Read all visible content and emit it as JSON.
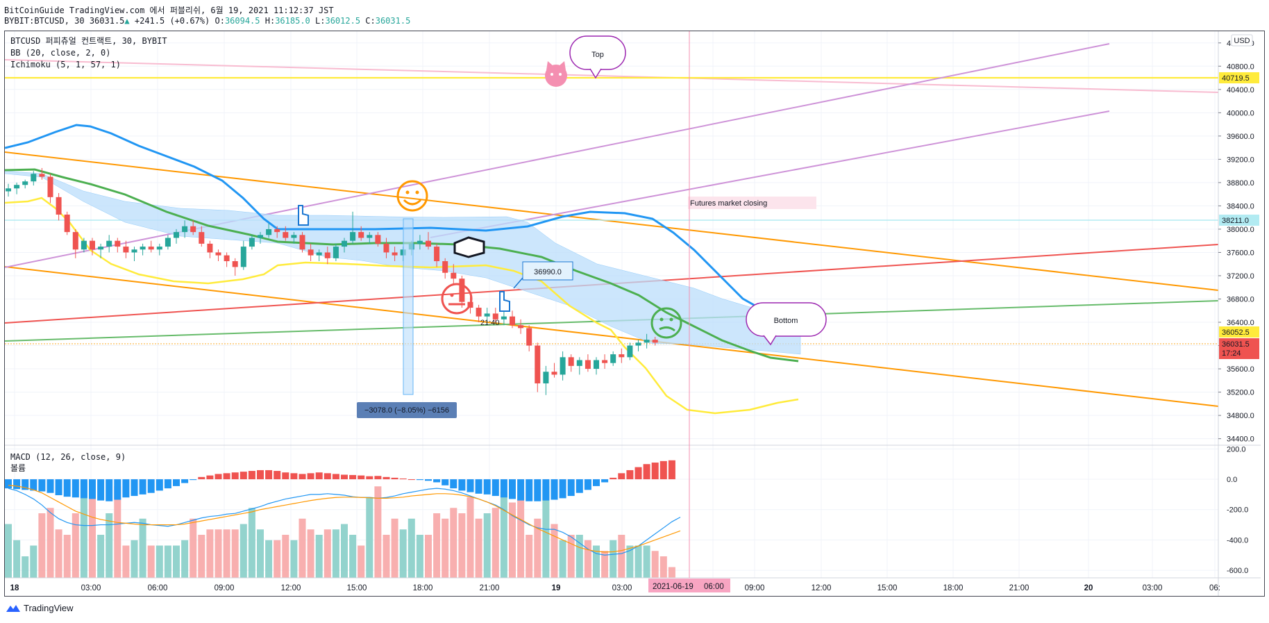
{
  "header": {
    "line1": "BitCoinGuide TradingView.com 에서 퍼블리쉬, 6월 19, 2021 11:12:37 JST",
    "symbol": "BYBIT:BTCUSD, 30",
    "last": "36031.5",
    "change": "+241.5 (+0.67%)",
    "o_label": "O:",
    "o": "36094.5",
    "h_label": "H:",
    "h": "36185.0",
    "l_label": "L:",
    "l": "36012.5",
    "c_label": "C:",
    "c": "36031.5"
  },
  "legend": {
    "title": "BTCUSD 퍼피츄얼 컨트랙트, 30, BYBIT",
    "bb": "BB (20, close, 2, 0)",
    "ichimoku": "Ichimoku (5, 1, 57, 1)",
    "macd": "MACD (12, 26, close, 9)",
    "volume": "볼륨"
  },
  "currency": "USD",
  "footer": {
    "brand": "TradingView"
  },
  "annotations": {
    "top": "Top",
    "bottom": "Bottom",
    "futures": "Futures market closing",
    "price_note": "36990.0",
    "time_note": "21:40",
    "measure": "−3078.0 (−8.05%) −6156"
  },
  "price_labels": {
    "p1": "40719.5",
    "p2": "38211.0",
    "p3": "36052.5",
    "p4": "36031.5",
    "countdown": "17:24"
  },
  "colors": {
    "up": "#26a69a",
    "down": "#ef5350",
    "bb_basis": "#2196f3",
    "cloud": "#bbdefb",
    "ichimoku_green": "#4caf50",
    "ichimoku_yellow": "#ffeb3b",
    "orange": "#ff9800",
    "violet": "#ce93d8",
    "pink": "#f8bbd0",
    "red_trend": "#ef5350",
    "green_trend": "#66bb6a"
  },
  "chart_data": [
    {
      "type": "candlestick",
      "price_axis_ticks": [
        "41200.0",
        "40800.0",
        "40400.0",
        "40000.0",
        "39600.0",
        "39200.0",
        "38800.0",
        "38400.0",
        "38000.0",
        "37600.0",
        "37200.0",
        "36800.0",
        "36400.0",
        "36000.0",
        "35600.0",
        "35200.0",
        "34800.0",
        "34400.0"
      ],
      "ylim": [
        34300,
        41400
      ],
      "time_axis_ticks": [
        "18",
        "03:00",
        "06:00",
        "09:00",
        "12:00",
        "15:00",
        "18:00",
        "21:00",
        "19",
        "03:00",
        "06:00",
        "09:00",
        "12:00",
        "15:00",
        "18:00",
        "21:00",
        "20",
        "03:00",
        "06:"
      ],
      "crosshair_time": "2021-06-19",
      "crosshair_time2": "06:00",
      "candles": [
        [
          38650,
          38780,
          38560,
          38700
        ],
        [
          38700,
          38800,
          38600,
          38760
        ],
        [
          38760,
          38850,
          38700,
          38820
        ],
        [
          38820,
          39000,
          38750,
          38950
        ],
        [
          38950,
          39050,
          38850,
          38900
        ],
        [
          38900,
          38950,
          38450,
          38550
        ],
        [
          38550,
          38620,
          38150,
          38250
        ],
        [
          38250,
          38300,
          37900,
          37950
        ],
        [
          37950,
          38000,
          37500,
          37650
        ],
        [
          37650,
          37850,
          37600,
          37800
        ],
        [
          37800,
          37850,
          37550,
          37650
        ],
        [
          37650,
          37750,
          37500,
          37700
        ],
        [
          37700,
          37900,
          37600,
          37800
        ],
        [
          37800,
          37850,
          37600,
          37700
        ],
        [
          37700,
          37800,
          37500,
          37600
        ],
        [
          37600,
          37700,
          37450,
          37650
        ],
        [
          37650,
          37750,
          37550,
          37700
        ],
        [
          37700,
          37800,
          37600,
          37650
        ],
        [
          37650,
          37750,
          37550,
          37700
        ],
        [
          37700,
          37900,
          37650,
          37850
        ],
        [
          37850,
          38000,
          37750,
          37950
        ],
        [
          37950,
          38150,
          37850,
          38050
        ],
        [
          38050,
          38150,
          37900,
          37950
        ],
        [
          37950,
          38050,
          37700,
          37750
        ],
        [
          37750,
          37800,
          37500,
          37600
        ],
        [
          37600,
          37650,
          37450,
          37550
        ],
        [
          37550,
          37600,
          37350,
          37450
        ],
        [
          37450,
          37500,
          37200,
          37350
        ],
        [
          37350,
          37800,
          37300,
          37700
        ],
        [
          37700,
          37900,
          37650,
          37850
        ],
        [
          37850,
          37950,
          37750,
          37900
        ],
        [
          37900,
          38100,
          37850,
          38000
        ],
        [
          38000,
          38050,
          37850,
          37950
        ],
        [
          37950,
          38050,
          37800,
          37850
        ],
        [
          37850,
          37950,
          37750,
          37900
        ],
        [
          37900,
          37950,
          37600,
          37650
        ],
        [
          37650,
          37750,
          37450,
          37550
        ],
        [
          37550,
          37650,
          37450,
          37600
        ],
        [
          37600,
          37700,
          37400,
          37500
        ],
        [
          37500,
          37750,
          37450,
          37700
        ],
        [
          37700,
          37850,
          37600,
          37800
        ],
        [
          37800,
          38300,
          37750,
          37950
        ],
        [
          37950,
          38050,
          37800,
          37850
        ],
        [
          37850,
          37950,
          37750,
          37900
        ],
        [
          37900,
          37950,
          37700,
          37750
        ],
        [
          37750,
          37850,
          37500,
          37600
        ],
        [
          37600,
          37700,
          37450,
          37550
        ],
        [
          37550,
          37700,
          37450,
          37650
        ],
        [
          37650,
          37800,
          37550,
          37750
        ],
        [
          37750,
          37900,
          37650,
          37800
        ],
        [
          37800,
          37950,
          37650,
          37700
        ],
        [
          37700,
          37750,
          37350,
          37450
        ],
        [
          37450,
          37500,
          37150,
          37250
        ],
        [
          37250,
          37400,
          37050,
          37150
        ],
        [
          37150,
          37200,
          36650,
          36750
        ],
        [
          36750,
          36850,
          36550,
          36650
        ],
        [
          36650,
          36700,
          36400,
          36500
        ],
        [
          36500,
          36650,
          36350,
          36550
        ],
        [
          36550,
          36650,
          36400,
          36450
        ],
        [
          36450,
          36600,
          36350,
          36500
        ],
        [
          36500,
          36600,
          36300,
          36350
        ],
        [
          36350,
          36450,
          36200,
          36300
        ],
        [
          36300,
          36350,
          35900,
          36000
        ],
        [
          36000,
          36050,
          35200,
          35350
        ],
        [
          35350,
          35650,
          35150,
          35550
        ],
        [
          35550,
          35700,
          35450,
          35500
        ],
        [
          35500,
          35900,
          35400,
          35800
        ],
        [
          35800,
          35850,
          35550,
          35650
        ],
        [
          35650,
          35800,
          35500,
          35750
        ],
        [
          35750,
          35850,
          35550,
          35600
        ],
        [
          35600,
          35800,
          35500,
          35750
        ],
        [
          35750,
          35850,
          35600,
          35700
        ],
        [
          35700,
          35900,
          35650,
          35850
        ],
        [
          35850,
          35950,
          35700,
          35800
        ],
        [
          35800,
          36050,
          35750,
          36000
        ],
        [
          36000,
          36100,
          35900,
          36050
        ],
        [
          36050,
          36200,
          35950,
          36100
        ],
        [
          36100,
          36150,
          36000,
          36050
        ]
      ]
    },
    {
      "type": "bar",
      "name": "MACD",
      "axis_ticks": [
        "200.0",
        "0.0",
        "-200.0",
        "-400.0",
        "-600.0"
      ],
      "ylim": [
        -650,
        220
      ],
      "histogram": [
        -60,
        -65,
        -70,
        -75,
        -80,
        -90,
        -105,
        -115,
        -120,
        -125,
        -130,
        -140,
        -145,
        -135,
        -120,
        -110,
        -100,
        -90,
        -75,
        -60,
        -45,
        -25,
        -5,
        15,
        25,
        35,
        40,
        45,
        50,
        55,
        60,
        60,
        55,
        45,
        40,
        35,
        40,
        45,
        40,
        35,
        30,
        28,
        25,
        20,
        22,
        15,
        10,
        5,
        0,
        -5,
        -10,
        -20,
        -40,
        -60,
        -75,
        -85,
        -95,
        -100,
        -110,
        -120,
        -130,
        -140,
        -145,
        -145,
        -140,
        -135,
        -125,
        -110,
        -90,
        -70,
        -45,
        -20,
        10,
        40,
        60,
        80,
        100,
        110,
        120,
        125
      ],
      "macd_line": [
        -60,
        -75,
        -100,
        -130,
        -170,
        -220,
        -260,
        -285,
        -300,
        -305,
        -305,
        -300,
        -300,
        -295,
        -290,
        -285,
        -290,
        -300,
        -305,
        -310,
        -300,
        -285,
        -270,
        -255,
        -245,
        -240,
        -230,
        -225,
        -210,
        -195,
        -180,
        -160,
        -145,
        -130,
        -120,
        -110,
        -100,
        -100,
        -95,
        -100,
        -105,
        -115,
        -120,
        -120,
        -125,
        -120,
        -110,
        -95,
        -85,
        -75,
        -65,
        -60,
        -65,
        -75,
        -90,
        -110,
        -130,
        -150,
        -170,
        -200,
        -240,
        -270,
        -300,
        -320,
        -330,
        -330,
        -350,
        -380,
        -420,
        -460,
        -490,
        -500,
        -495,
        -490,
        -470,
        -440,
        -400,
        -360,
        -320,
        -280,
        -250
      ],
      "signal_line": [
        -40,
        -45,
        -55,
        -70,
        -90,
        -120,
        -150,
        -180,
        -210,
        -230,
        -250,
        -265,
        -275,
        -285,
        -290,
        -295,
        -300,
        -300,
        -300,
        -300,
        -300,
        -295,
        -285,
        -275,
        -265,
        -255,
        -245,
        -235,
        -225,
        -215,
        -200,
        -190,
        -180,
        -170,
        -160,
        -150,
        -140,
        -132,
        -125,
        -120,
        -118,
        -118,
        -120,
        -122,
        -125,
        -125,
        -122,
        -118,
        -110,
        -105,
        -100,
        -95,
        -95,
        -98,
        -105,
        -115,
        -130,
        -150,
        -175,
        -205,
        -235,
        -265,
        -295,
        -325,
        -350,
        -375,
        -400,
        -425,
        -450,
        -465,
        -475,
        -480,
        -478,
        -470,
        -455,
        -440,
        -420,
        -400,
        -380,
        -360,
        -340
      ]
    },
    {
      "type": "bar",
      "name": "볼륨",
      "values": [
        50,
        35,
        20,
        30,
        60,
        65,
        45,
        40,
        60,
        90,
        80,
        40,
        60,
        85,
        30,
        35,
        55,
        30,
        30,
        30,
        30,
        35,
        55,
        40,
        45,
        45,
        45,
        45,
        50,
        65,
        45,
        35,
        35,
        40,
        35,
        55,
        45,
        40,
        45,
        45,
        50,
        40,
        30,
        75,
        85,
        40,
        55,
        45,
        55,
        40,
        40,
        60,
        55,
        65,
        60,
        75,
        55,
        60,
        65,
        80,
        70,
        80,
        40,
        55,
        85,
        50,
        35,
        40,
        40,
        35,
        30,
        25,
        35,
        40,
        30,
        30,
        30,
        25,
        20,
        10
      ]
    }
  ]
}
